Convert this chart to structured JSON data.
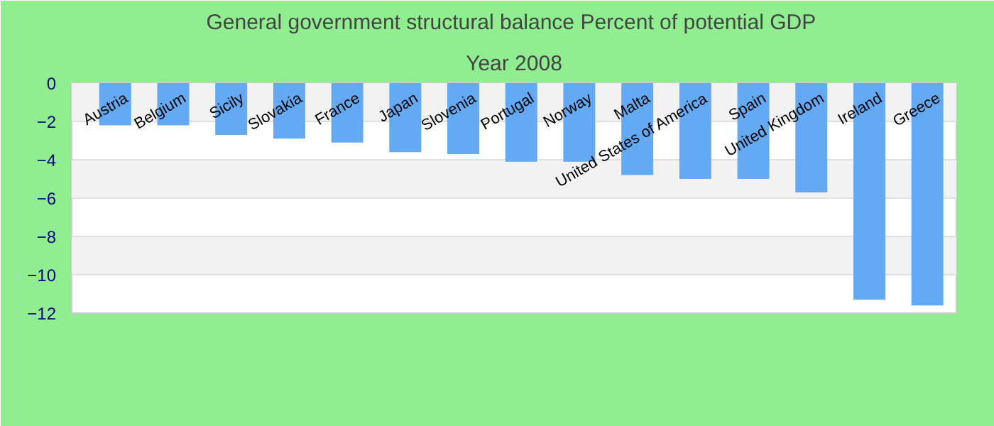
{
  "chart_data": {
    "type": "bar",
    "title": "General government structural balance  Percent of potential GDP",
    "subtitle": "Year 2008",
    "categories": [
      "Austria",
      "Belgium",
      "Sicily",
      "Slovakia",
      "France",
      "Japan",
      "Slovenia",
      "Portugal",
      "Norway",
      "Malta",
      "United States of America",
      "Spain",
      "United Kingdom",
      "Ireland",
      "Greece"
    ],
    "values": [
      -2.2,
      -2.2,
      -2.7,
      -2.9,
      -3.1,
      -3.6,
      -3.7,
      -4.1,
      -4.1,
      -4.8,
      -5.0,
      -5.0,
      -5.7,
      -11.3,
      -11.6
    ],
    "color": "#63a9f4",
    "ylim": [
      -12,
      0
    ],
    "yticks": [
      -12,
      -10,
      -8,
      -6,
      -4,
      -2,
      0
    ],
    "grid": "y"
  }
}
